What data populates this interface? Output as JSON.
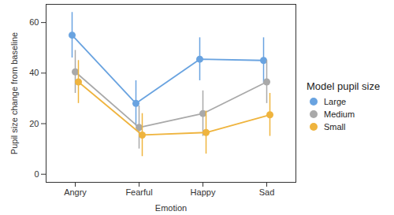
{
  "chart_data": {
    "type": "line",
    "x_label": "Emotion",
    "y_label": "Pupil size change from baseline",
    "legend_title": "Model pupil size",
    "categories": [
      "Angry",
      "Fearful",
      "Happy",
      "Sad"
    ],
    "series": [
      {
        "name": "Large",
        "color": "#69a3e0",
        "marker": "circle",
        "values": [
          55,
          28,
          45.5,
          45
        ],
        "lower": [
          46,
          19,
          37,
          36
        ],
        "upper": [
          64,
          37,
          54,
          54
        ]
      },
      {
        "name": "Medium",
        "color": "#a9a9a9",
        "marker": "circle",
        "values": [
          40.5,
          18.5,
          24,
          36.5
        ],
        "lower": [
          32,
          10,
          15,
          28
        ],
        "upper": [
          49,
          27,
          33,
          45
        ]
      },
      {
        "name": "Small",
        "color": "#efb43e",
        "marker": "circle",
        "values": [
          36.5,
          15.5,
          16.5,
          23.5
        ],
        "lower": [
          28,
          7,
          8,
          15
        ],
        "upper": [
          45,
          24,
          25,
          32
        ]
      }
    ],
    "ylim": [
      -3.2,
      67.2
    ],
    "yticks": [
      0,
      20,
      40,
      60
    ],
    "legend": "right",
    "grid": false
  }
}
